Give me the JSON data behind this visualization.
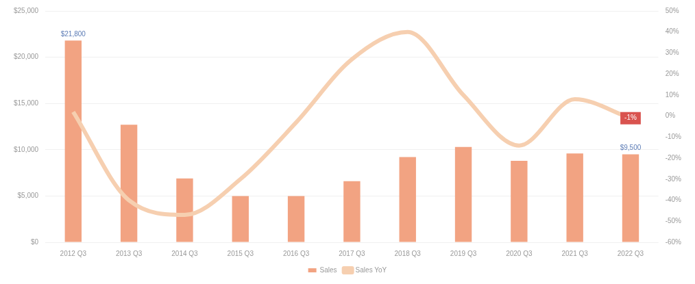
{
  "chart_data": {
    "type": "bar",
    "categories": [
      "2012 Q3",
      "2013 Q3",
      "2014 Q3",
      "2015 Q3",
      "2016 Q3",
      "2017 Q3",
      "2018 Q3",
      "2019 Q3",
      "2020 Q3",
      "2021 Q3",
      "2022 Q3"
    ],
    "series": [
      {
        "name": "Sales",
        "color": "#f2a382",
        "values": [
          21800,
          12700,
          6900,
          5000,
          5000,
          6600,
          9200,
          10300,
          8800,
          9600,
          9500
        ],
        "value_labels": [
          "$21,800",
          null,
          null,
          null,
          null,
          null,
          null,
          null,
          null,
          null,
          "$9,500"
        ]
      },
      {
        "name": "Sales YoY",
        "type": "line",
        "axis": "y2",
        "color": "#f6cfb0",
        "values": [
          2,
          -40,
          -47,
          -30,
          -3,
          27,
          40,
          10,
          -14,
          8,
          -1
        ],
        "value_labels": [
          null,
          null,
          null,
          null,
          null,
          null,
          null,
          null,
          null,
          null,
          "-1%"
        ]
      }
    ],
    "ylim": [
      0,
      25000
    ],
    "yticks": [
      {
        "value": 0,
        "label": "$0"
      },
      {
        "value": 5000,
        "label": "$5,000"
      },
      {
        "value": 10000,
        "label": "$10,000"
      },
      {
        "value": 15000,
        "label": "$15,000"
      },
      {
        "value": 20000,
        "label": "$20,000"
      },
      {
        "value": 25000,
        "label": "$25,000"
      }
    ],
    "y2lim": [
      -60,
      50
    ],
    "y2ticks": [
      {
        "value": -60,
        "label": "-60%"
      },
      {
        "value": -50,
        "label": "-50%"
      },
      {
        "value": -40,
        "label": "-40%"
      },
      {
        "value": -30,
        "label": "-30%"
      },
      {
        "value": -20,
        "label": "-20%"
      },
      {
        "value": -10,
        "label": "-10%"
      },
      {
        "value": 0,
        "label": "0%"
      },
      {
        "value": 10,
        "label": "10%"
      },
      {
        "value": 20,
        "label": "20%"
      },
      {
        "value": 30,
        "label": "30%"
      },
      {
        "value": 40,
        "label": "40%"
      },
      {
        "value": 50,
        "label": "50%"
      }
    ],
    "grid": "y",
    "legend": "bottom",
    "marker": "none"
  }
}
